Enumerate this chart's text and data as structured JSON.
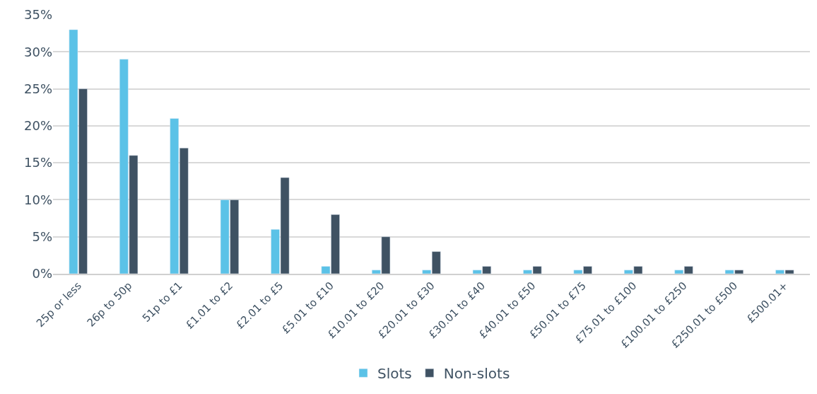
{
  "chart_data": {
    "type": "bar",
    "categories": [
      "25p or less",
      "26p to 50p",
      "51p to £1",
      "£1.01 to £2",
      "£2.01 to £5",
      "£5.01 to £10",
      "£10.01 to £20",
      "£20.01 to £30",
      "£30.01 to £40",
      "£40.01 to £50",
      "£50.01 to £75",
      "£75.01 to £100",
      "£100.01 to £250",
      "£250.01 to £500",
      "£500.01+"
    ],
    "series": [
      {
        "name": "Slots",
        "color": "#5bc2e7",
        "values": [
          33,
          29,
          21,
          10,
          6,
          1,
          0.5,
          0.5,
          0.5,
          0.5,
          0.5,
          0.5,
          0.5,
          0.5,
          0.5
        ]
      },
      {
        "name": "Non-slots",
        "color": "#3f5263",
        "values": [
          25,
          16,
          17,
          10,
          13,
          8,
          5,
          3,
          1,
          1,
          1,
          1,
          1,
          0.5,
          0.5
        ]
      }
    ],
    "ylim": [
      0,
      35
    ],
    "yticks": [
      {
        "value": 0,
        "label": "0%"
      },
      {
        "value": 5,
        "label": "5%"
      },
      {
        "value": 10,
        "label": "10%"
      },
      {
        "value": 15,
        "label": "15%"
      },
      {
        "value": 20,
        "label": "20%"
      },
      {
        "value": 25,
        "label": "25%"
      },
      {
        "value": 30,
        "label": "30%"
      },
      {
        "value": 35,
        "label": "35%"
      }
    ],
    "grid": "y",
    "legend": "bottom"
  }
}
